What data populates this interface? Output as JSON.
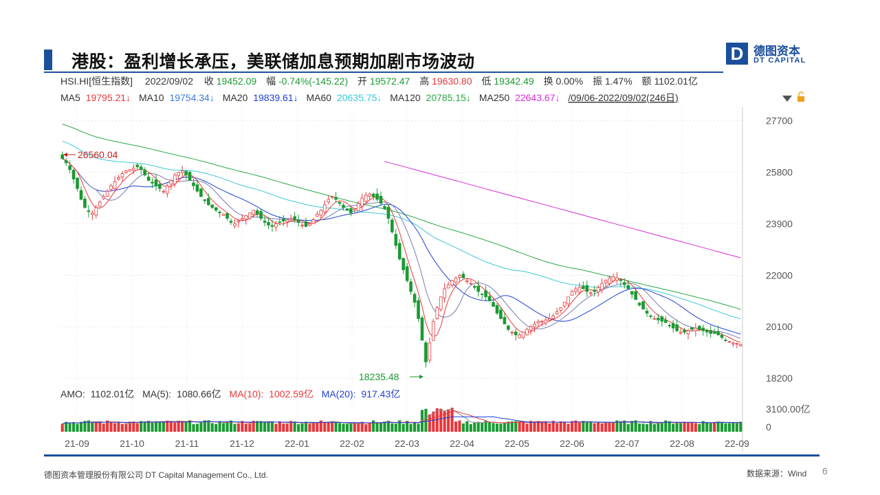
{
  "slide": {
    "title": "港股：盈利增长承压，美联储加息预期加剧市场波动",
    "logo_cn": "德图资本",
    "logo_en": "DT CAPITAL",
    "logo_mark": "D",
    "footer_left": "德图资本管理股份有限公司 DT Capital Management Co., Ltd.",
    "footer_right": "数据来源：Wind",
    "page_number": "6"
  },
  "info_line": {
    "symbol": "HSI.HI[恒生指数]",
    "date": "2022/09/02",
    "close_label": "收",
    "close": "19452.09",
    "change_label": "幅",
    "change": "-0.74%(-145.22)",
    "open_label": "开",
    "open": "19572.47",
    "high_label": "高",
    "high": "19630.80",
    "low_label": "低",
    "low": "19342.49",
    "turnover_label": "换",
    "turnover": "0.00%",
    "amplitude_label": "振",
    "amplitude": "1.47%",
    "amount_label": "额",
    "amount": "1102.01亿"
  },
  "ma_line": {
    "ma5_label": "MA5",
    "ma5": "19795.21↓",
    "ma10_label": "MA10",
    "ma10": "19754.34↓",
    "ma20_label": "MA20",
    "ma20": "19839.61↓",
    "ma60_label": "MA60",
    "ma60": "20635.75↓",
    "ma120_label": "MA120",
    "ma120": "20785.15↓",
    "ma250_label": "MA250",
    "ma250": "22643.67↓",
    "range": "/09/06-2022/09/02(246日)"
  },
  "volume_line": {
    "amo_label": "AMO:",
    "amo": "1102.01亿",
    "ma5_label": "MA(5):",
    "ma5": "1080.66亿",
    "ma10_label": "MA(10):",
    "ma10": "1002.59亿",
    "ma20_label": "MA(20):",
    "ma20": "917.43亿"
  },
  "colors": {
    "up": "#e8373b",
    "down": "#1a9a33",
    "ma5": "#e8373b",
    "ma10": "#1f3fd6",
    "ma20": "#1f3fd6",
    "ma60": "#3cc8d8",
    "ma120": "#2aa845",
    "ma250": "#d62bd6",
    "brand": "#1b4f9c"
  },
  "chart_data": {
    "type": "candlestick",
    "y_ticks": [
      "27700",
      "25800",
      "23900",
      "22000",
      "20100",
      "18200"
    ],
    "ylim": [
      18000,
      28200
    ],
    "x_ticks": [
      "21-09",
      "21-10",
      "21-11",
      "21-12",
      "22-01",
      "22-02",
      "22-03",
      "22-04",
      "22-05",
      "22-06",
      "22-07",
      "22-08",
      "22-09"
    ],
    "annotations": [
      {
        "label": "26560.04",
        "type": "high"
      },
      {
        "label": "18235.48",
        "type": "low"
      }
    ],
    "close_series": [
      26300,
      26150,
      25900,
      25550,
      25200,
      24800,
      24500,
      24350,
      24300,
      24500,
      24700,
      24900,
      25100,
      25300,
      25450,
      25600,
      25750,
      25850,
      25900,
      25950,
      26000,
      25900,
      25700,
      25500,
      25400,
      25300,
      25200,
      25100,
      25300,
      25500,
      25700,
      25800,
      25850,
      25700,
      25500,
      25300,
      25100,
      24900,
      24750,
      24600,
      24500,
      24400,
      24300,
      24250,
      24100,
      23950,
      23900,
      24000,
      24100,
      24200,
      24300,
      24400,
      24250,
      24100,
      23950,
      23850,
      23800,
      23900,
      23950,
      24000,
      24050,
      24100,
      24050,
      23950,
      23850,
      23800,
      23900,
      24050,
      24250,
      24400,
      24600,
      24800,
      24900,
      24800,
      24650,
      24500,
      24400,
      24300,
      24450,
      24650,
      24850,
      24950,
      25000,
      24900,
      24800,
      24650,
      24450,
      24100,
      23600,
      23100,
      22600,
      22200,
      21800,
      21400,
      21000,
      20400,
      19600,
      18800,
      19500,
      20300,
      20800,
      21200,
      21500,
      21650,
      21800,
      21900,
      22000,
      21900,
      21800,
      21700,
      21550,
      21400,
      21300,
      21200,
      21050,
      20850,
      20600,
      20400,
      20200,
      20000,
      19900,
      19800,
      19800,
      19900,
      20000,
      20100,
      20200,
      20300,
      20300,
      20350,
      20400,
      20500,
      20650,
      20800,
      21000,
      21200,
      21400,
      21500,
      21550,
      21500,
      21400,
      21350,
      21400,
      21550,
      21700,
      21800,
      21900,
      21950,
      21900,
      21800,
      21650,
      21500,
      21300,
      21100,
      20900,
      20750,
      20600,
      20500,
      20400,
      20350,
      20300,
      20250,
      20150,
      20050,
      19950,
      19900,
      19900,
      19950,
      20000,
      20050,
      20000,
      19950,
      19900,
      19850,
      19850,
      19800,
      19700,
      19600,
      19550,
      19500,
      19480,
      19452
    ],
    "ma250_range": [
      26200,
      22643.67
    ],
    "ma120_range": [
      27800,
      20785.15
    ],
    "ma60_range": [
      27300,
      20635.75
    ],
    "volume_ylim": [
      0,
      3100
    ],
    "volume_ticks": [
      "3100.00亿",
      "0"
    ]
  }
}
